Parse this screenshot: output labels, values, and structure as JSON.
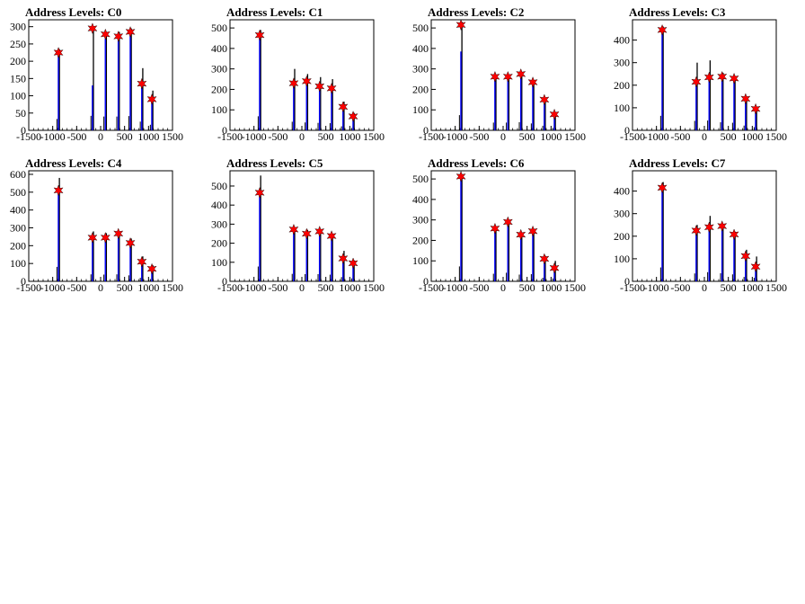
{
  "chart_data": [
    {
      "type": "bar",
      "title": "Address Levels: C0",
      "xlim": [
        -1500,
        1500
      ],
      "ylim": [
        0,
        320
      ],
      "xticks": [
        -1500,
        -1000,
        -500,
        0,
        500,
        1000,
        1500
      ],
      "yticks": [
        0,
        50,
        100,
        150,
        200,
        250,
        300
      ],
      "peaks": [
        {
          "x": -880,
          "black": 235,
          "blue": 225,
          "star": 225
        },
        {
          "x": -170,
          "black": 300,
          "blue": 130,
          "star": 295
        },
        {
          "x": 100,
          "black": 285,
          "blue": 265,
          "star": 278
        },
        {
          "x": 370,
          "black": 285,
          "blue": 260,
          "star": 272
        },
        {
          "x": 620,
          "black": 295,
          "blue": 280,
          "star": 285
        },
        {
          "x": 860,
          "black": 180,
          "blue": 140,
          "star": 135
        },
        {
          "x": 1070,
          "black": 115,
          "blue": 95,
          "star": 90
        }
      ]
    },
    {
      "type": "bar",
      "title": "Address Levels: C1",
      "xlim": [
        -1500,
        1500
      ],
      "ylim": [
        0,
        540
      ],
      "xticks": [
        -1500,
        -1000,
        -500,
        0,
        500,
        1000,
        1500
      ],
      "yticks": [
        0,
        100,
        200,
        300,
        400,
        500
      ],
      "peaks": [
        {
          "x": -880,
          "black": 490,
          "blue": 470,
          "star": 465
        },
        {
          "x": -170,
          "black": 300,
          "blue": 235,
          "star": 230
        },
        {
          "x": 100,
          "black": 275,
          "blue": 245,
          "star": 240
        },
        {
          "x": 370,
          "black": 260,
          "blue": 215,
          "star": 215
        },
        {
          "x": 620,
          "black": 250,
          "blue": 205,
          "star": 205
        },
        {
          "x": 860,
          "black": 140,
          "blue": 120,
          "star": 115
        },
        {
          "x": 1070,
          "black": 85,
          "blue": 70,
          "star": 68
        }
      ]
    },
    {
      "type": "bar",
      "title": "Address Levels: C2",
      "xlim": [
        -1500,
        1500
      ],
      "ylim": [
        0,
        540
      ],
      "xticks": [
        -1500,
        -1000,
        -500,
        0,
        500,
        1000,
        1500
      ],
      "yticks": [
        0,
        100,
        200,
        300,
        400,
        500
      ],
      "peaks": [
        {
          "x": -880,
          "black": 530,
          "blue": 385,
          "star": 515
        },
        {
          "x": -170,
          "black": 270,
          "blue": 260,
          "star": 262
        },
        {
          "x": 100,
          "black": 270,
          "blue": 255,
          "star": 262
        },
        {
          "x": 370,
          "black": 285,
          "blue": 270,
          "star": 275
        },
        {
          "x": 620,
          "black": 240,
          "blue": 225,
          "star": 235
        },
        {
          "x": 860,
          "black": 160,
          "blue": 140,
          "star": 150
        },
        {
          "x": 1070,
          "black": 85,
          "blue": 75,
          "star": 78
        }
      ]
    },
    {
      "type": "bar",
      "title": "Address Levels: C3",
      "xlim": [
        -1500,
        1500
      ],
      "ylim": [
        0,
        490
      ],
      "xticks": [
        -1500,
        -1000,
        -500,
        0,
        500,
        1000,
        1500
      ],
      "yticks": [
        0,
        100,
        200,
        300,
        400
      ],
      "peaks": [
        {
          "x": -880,
          "black": 460,
          "blue": 440,
          "star": 445
        },
        {
          "x": -170,
          "black": 300,
          "blue": 220,
          "star": 215
        },
        {
          "x": 100,
          "black": 310,
          "blue": 240,
          "star": 235
        },
        {
          "x": 370,
          "black": 255,
          "blue": 235,
          "star": 238
        },
        {
          "x": 620,
          "black": 240,
          "blue": 225,
          "star": 230
        },
        {
          "x": 860,
          "black": 150,
          "blue": 135,
          "star": 140
        },
        {
          "x": 1070,
          "black": 100,
          "blue": 90,
          "star": 95
        }
      ]
    },
    {
      "type": "bar",
      "title": "Address Levels: C4",
      "xlim": [
        -1500,
        1500
      ],
      "ylim": [
        0,
        620
      ],
      "xticks": [
        -1500,
        -1000,
        -500,
        0,
        500,
        1000,
        1500
      ],
      "yticks": [
        0,
        100,
        200,
        300,
        400,
        500,
        600
      ],
      "peaks": [
        {
          "x": -880,
          "black": 580,
          "blue": 520,
          "star": 510
        },
        {
          "x": -170,
          "black": 280,
          "blue": 250,
          "star": 245
        },
        {
          "x": 100,
          "black": 270,
          "blue": 250,
          "star": 245
        },
        {
          "x": 370,
          "black": 280,
          "blue": 265,
          "star": 268
        },
        {
          "x": 620,
          "black": 240,
          "blue": 210,
          "star": 215
        },
        {
          "x": 860,
          "black": 140,
          "blue": 110,
          "star": 110
        },
        {
          "x": 1070,
          "black": 90,
          "blue": 70,
          "star": 70
        }
      ]
    },
    {
      "type": "bar",
      "title": "Address Levels: C5",
      "xlim": [
        -1500,
        1500
      ],
      "ylim": [
        0,
        580
      ],
      "xticks": [
        -1500,
        -1000,
        -500,
        0,
        500,
        1000,
        1500
      ],
      "yticks": [
        0,
        100,
        200,
        300,
        400,
        500
      ],
      "peaks": [
        {
          "x": -880,
          "black": 555,
          "blue": 470,
          "star": 465
        },
        {
          "x": -170,
          "black": 280,
          "blue": 270,
          "star": 272
        },
        {
          "x": 100,
          "black": 270,
          "blue": 250,
          "star": 250
        },
        {
          "x": 370,
          "black": 270,
          "blue": 260,
          "star": 262
        },
        {
          "x": 620,
          "black": 250,
          "blue": 235,
          "star": 238
        },
        {
          "x": 860,
          "black": 160,
          "blue": 130,
          "star": 120
        },
        {
          "x": 1070,
          "black": 110,
          "blue": 95,
          "star": 95
        }
      ]
    },
    {
      "type": "bar",
      "title": "Address Levels: C6",
      "xlim": [
        -1500,
        1500
      ],
      "ylim": [
        0,
        540
      ],
      "xticks": [
        -1500,
        -1000,
        -500,
        0,
        500,
        1000,
        1500
      ],
      "yticks": [
        0,
        100,
        200,
        300,
        400,
        500
      ],
      "peaks": [
        {
          "x": -880,
          "black": 520,
          "blue": 510,
          "star": 512
        },
        {
          "x": -170,
          "black": 265,
          "blue": 255,
          "star": 258
        },
        {
          "x": 100,
          "black": 300,
          "blue": 285,
          "star": 290
        },
        {
          "x": 370,
          "black": 235,
          "blue": 225,
          "star": 228
        },
        {
          "x": 620,
          "black": 250,
          "blue": 240,
          "star": 245
        },
        {
          "x": 860,
          "black": 125,
          "blue": 110,
          "star": 110
        },
        {
          "x": 1070,
          "black": 100,
          "blue": 70,
          "star": 65
        }
      ]
    },
    {
      "type": "bar",
      "title": "Address Levels: C7",
      "xlim": [
        -1500,
        1500
      ],
      "ylim": [
        0,
        490
      ],
      "xticks": [
        -1500,
        -1000,
        -500,
        0,
        500,
        1000,
        1500
      ],
      "yticks": [
        0,
        100,
        200,
        300,
        400
      ],
      "peaks": [
        {
          "x": -880,
          "black": 440,
          "blue": 420,
          "star": 415
        },
        {
          "x": -170,
          "black": 250,
          "blue": 225,
          "star": 225
        },
        {
          "x": 100,
          "black": 290,
          "blue": 240,
          "star": 240
        },
        {
          "x": 370,
          "black": 255,
          "blue": 245,
          "star": 245
        },
        {
          "x": 620,
          "black": 220,
          "blue": 205,
          "star": 208
        },
        {
          "x": 860,
          "black": 140,
          "blue": 120,
          "star": 112
        },
        {
          "x": 1070,
          "black": 110,
          "blue": 75,
          "star": 65
        }
      ]
    }
  ],
  "colors": {
    "blue_series": "#0000ff",
    "black_series": "#000000",
    "star_marker": "#ff0000"
  }
}
